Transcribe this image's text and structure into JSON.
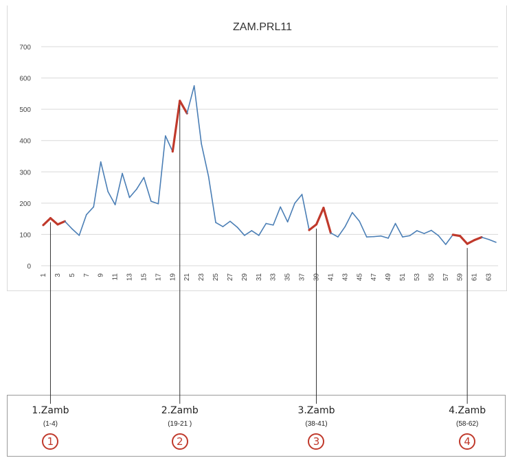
{
  "chart_data": {
    "type": "line",
    "title": "ZAM.PRL11",
    "xlabel": "",
    "ylabel": "",
    "ylim": [
      0,
      700
    ],
    "yticks": [
      "0",
      "100",
      "200",
      "300",
      "400",
      "500",
      "600",
      "700"
    ],
    "xticks": [
      "1",
      "3",
      "5",
      "7",
      "9",
      "11",
      "13",
      "15",
      "17",
      "19",
      "21",
      "23",
      "25",
      "27",
      "29",
      "31",
      "33",
      "35",
      "37",
      "39",
      "41",
      "43",
      "45",
      "47",
      "49",
      "51",
      "53",
      "55",
      "57",
      "59",
      "61",
      "63"
    ],
    "x": [
      1,
      2,
      3,
      4,
      5,
      6,
      7,
      8,
      9,
      10,
      11,
      12,
      13,
      14,
      15,
      16,
      17,
      18,
      19,
      20,
      21,
      22,
      23,
      24,
      25,
      26,
      27,
      28,
      29,
      30,
      31,
      32,
      33,
      34,
      35,
      36,
      37,
      38,
      39,
      40,
      41,
      42,
      43,
      44,
      45,
      46,
      47,
      48,
      49,
      50,
      51,
      52,
      53,
      54,
      55,
      56,
      57,
      58,
      59,
      60,
      61,
      62,
      63,
      64
    ],
    "values": [
      130,
      152,
      132,
      142,
      118,
      97,
      163,
      188,
      332,
      237,
      195,
      295,
      218,
      245,
      282,
      206,
      198,
      415,
      365,
      527,
      487,
      575,
      390,
      285,
      138,
      125,
      142,
      123,
      97,
      112,
      97,
      135,
      130,
      188,
      140,
      200,
      228,
      114,
      132,
      185,
      105,
      92,
      125,
      170,
      142,
      92,
      93,
      95,
      88,
      135,
      92,
      96,
      112,
      103,
      113,
      96,
      68,
      99,
      95,
      70,
      82,
      91,
      84,
      75
    ],
    "highlight_segments": [
      [
        1,
        4
      ],
      [
        19,
        21
      ],
      [
        38,
        41
      ],
      [
        58,
        62
      ]
    ],
    "colors": {
      "series": "#4a7eb5",
      "highlight": "#c0392b",
      "grid": "#d9d9d9",
      "axis_text": "#444444",
      "marker_line": "#333333"
    },
    "grid": true
  },
  "markers": [
    {
      "label": "1.Zamb",
      "range": "(1-4)",
      "number": "①",
      "x": 2
    },
    {
      "label": "2.Zamb",
      "range": "(19-21 )",
      "number": "②",
      "x": 20
    },
    {
      "label": "3.Zamb",
      "range": "(38-41)",
      "number": "③",
      "x": 39
    },
    {
      "label": "4.Zamb",
      "range": "(58-62)",
      "number": "④",
      "x": 60
    }
  ]
}
